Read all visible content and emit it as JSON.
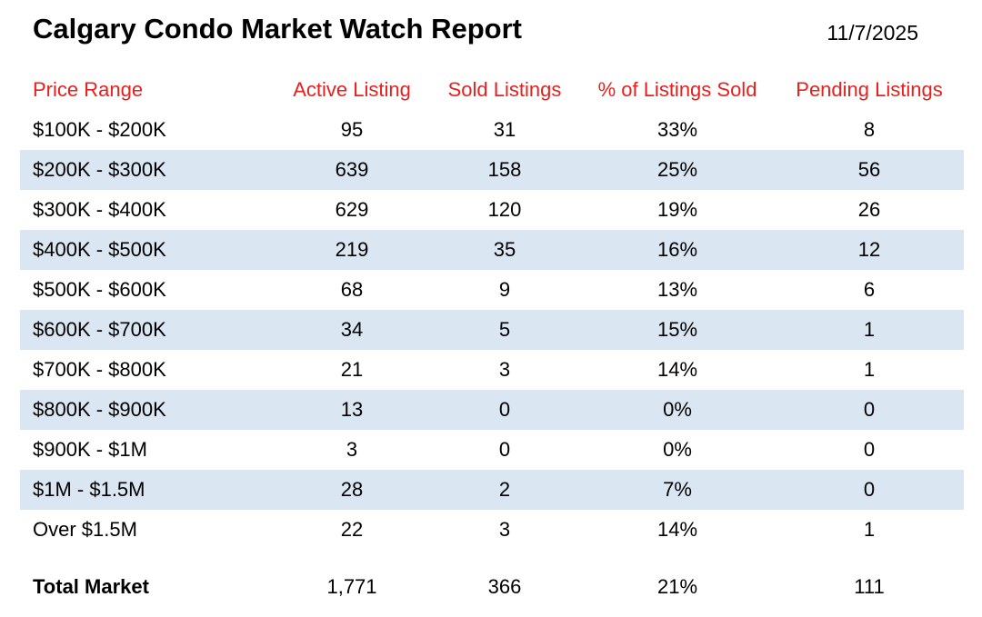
{
  "header": {
    "title": "Calgary Condo Market Watch Report",
    "date": "11/7/2025"
  },
  "table": {
    "columns": [
      "Price Range",
      "Active Listing",
      "Sold Listings",
      "% of Listings Sold",
      "Pending Listings"
    ],
    "rows": [
      {
        "price_range": "$100K - $200K",
        "active": "95",
        "sold": "31",
        "pct_sold": "33%",
        "pending": "8"
      },
      {
        "price_range": "$200K - $300K",
        "active": "639",
        "sold": "158",
        "pct_sold": "25%",
        "pending": "56"
      },
      {
        "price_range": "$300K - $400K",
        "active": "629",
        "sold": "120",
        "pct_sold": "19%",
        "pending": "26"
      },
      {
        "price_range": "$400K - $500K",
        "active": "219",
        "sold": "35",
        "pct_sold": "16%",
        "pending": "12"
      },
      {
        "price_range": "$500K - $600K",
        "active": "68",
        "sold": "9",
        "pct_sold": "13%",
        "pending": "6"
      },
      {
        "price_range": "$600K - $700K",
        "active": "34",
        "sold": "5",
        "pct_sold": "15%",
        "pending": "1"
      },
      {
        "price_range": "$700K - $800K",
        "active": "21",
        "sold": "3",
        "pct_sold": "14%",
        "pending": "1"
      },
      {
        "price_range": "$800K - $900K",
        "active": "13",
        "sold": "0",
        "pct_sold": "0%",
        "pending": "0"
      },
      {
        "price_range": "$900K - $1M",
        "active": "3",
        "sold": "0",
        "pct_sold": "0%",
        "pending": "0"
      },
      {
        "price_range": "$1M - $1.5M",
        "active": "28",
        "sold": "2",
        "pct_sold": "7%",
        "pending": "0"
      },
      {
        "price_range": "Over $1.5M",
        "active": "22",
        "sold": "3",
        "pct_sold": "14%",
        "pending": "1"
      }
    ],
    "total": {
      "price_range": "Total Market",
      "active": "1,771",
      "sold": "366",
      "pct_sold": "21%",
      "pending": "111"
    }
  },
  "colors": {
    "header_text": "#e8201d",
    "row_band": "#dbe6f3",
    "body_text": "#000000",
    "background": "#ffffff"
  },
  "chart_data": {
    "type": "table",
    "title": "Calgary Condo Market Watch Report",
    "date": "11/7/2025",
    "columns": [
      "Price Range",
      "Active Listing",
      "Sold Listings",
      "% of Listings Sold",
      "Pending Listings"
    ],
    "rows": [
      [
        "$100K - $200K",
        95,
        31,
        "33%",
        8
      ],
      [
        "$200K - $300K",
        639,
        158,
        "25%",
        56
      ],
      [
        "$300K - $400K",
        629,
        120,
        "19%",
        26
      ],
      [
        "$400K - $500K",
        219,
        35,
        "16%",
        12
      ],
      [
        "$500K - $600K",
        68,
        9,
        "13%",
        6
      ],
      [
        "$600K - $700K",
        34,
        5,
        "15%",
        1
      ],
      [
        "$700K - $800K",
        21,
        3,
        "14%",
        1
      ],
      [
        "$800K - $900K",
        13,
        0,
        "0%",
        0
      ],
      [
        "$900K - $1M",
        3,
        0,
        "0%",
        0
      ],
      [
        "$1M - $1.5M",
        28,
        2,
        "7%",
        0
      ],
      [
        "Over $1.5M",
        22,
        3,
        "14%",
        1
      ],
      [
        "Total Market",
        1771,
        366,
        "21%",
        111
      ]
    ],
    "layout_hints": {
      "banded_rows": true,
      "band_color": "#dbe6f3",
      "header_text_color": "#e8201d",
      "first_column_align": "left",
      "other_columns_align": "center",
      "gridlines": false,
      "total_row_separated": true
    }
  }
}
